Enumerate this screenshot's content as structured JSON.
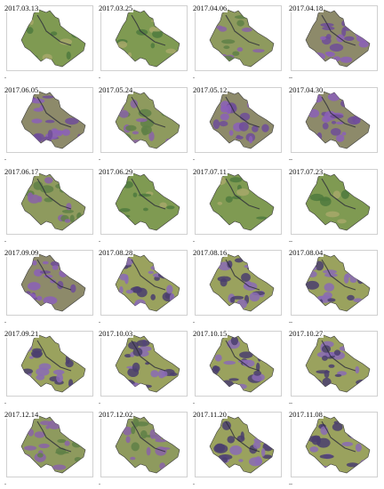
{
  "panels": [
    {
      "date": "2017.03.13",
      "tone": "green",
      "marker": "."
    },
    {
      "date": "2017.03.25",
      "tone": "green",
      "marker": "."
    },
    {
      "date": "2017.04.06",
      "tone": "mixed",
      "marker": "."
    },
    {
      "date": "2017.04.18",
      "tone": "purple",
      "marker": ".."
    },
    {
      "date": "2017.06.05",
      "tone": "purple",
      "marker": "."
    },
    {
      "date": "2017.05.24",
      "tone": "mixed",
      "marker": "."
    },
    {
      "date": "2017.05.12",
      "tone": "purple",
      "marker": "."
    },
    {
      "date": "2017.04.30",
      "tone": "purple",
      "marker": ".."
    },
    {
      "date": "2017.06.17",
      "tone": "mixed",
      "marker": "."
    },
    {
      "date": "2017.06.29",
      "tone": "green",
      "marker": "."
    },
    {
      "date": "2017.07.11",
      "tone": "green",
      "marker": "."
    },
    {
      "date": "2017.07.23",
      "tone": "green",
      "marker": ".."
    },
    {
      "date": "2017.09.09",
      "tone": "purple",
      "marker": "."
    },
    {
      "date": "2017.08.28",
      "tone": "dark",
      "marker": "."
    },
    {
      "date": "2017.08.16",
      "tone": "dark",
      "marker": "."
    },
    {
      "date": "2017.08.04",
      "tone": "dark",
      "marker": ".."
    },
    {
      "date": "2017.09.21",
      "tone": "dark",
      "marker": "."
    },
    {
      "date": "2017.10.03",
      "tone": "dark",
      "marker": "."
    },
    {
      "date": "2017.10.15",
      "tone": "dark",
      "marker": "."
    },
    {
      "date": "2017.10.27",
      "tone": "dark",
      "marker": ".."
    },
    {
      "date": "2017.12.14",
      "tone": "mixed",
      "marker": "."
    },
    {
      "date": "2017.12.02",
      "tone": "mixed",
      "marker": "."
    },
    {
      "date": "2017.11.20",
      "tone": "dark",
      "marker": "."
    },
    {
      "date": "2017.11.08",
      "tone": "dark",
      "marker": ".."
    }
  ],
  "palette": {
    "green": {
      "base": "#7f9a52",
      "blob": "#4f7a3e",
      "accent": "#a7a86a"
    },
    "mixed": {
      "base": "#8e9a5e",
      "blob": "#8a63a8",
      "accent": "#5f8046"
    },
    "purple": {
      "base": "#8d8a6a",
      "blob": "#8b5fb8",
      "accent": "#6f4c99"
    },
    "dark": {
      "base": "#9aa25e",
      "blob": "#4a3e6e",
      "accent": "#8a6bb5"
    }
  }
}
